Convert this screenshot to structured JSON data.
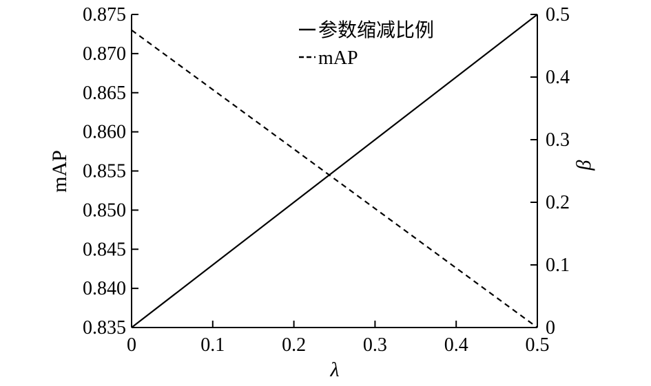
{
  "chart_data": {
    "type": "line",
    "x": [
      0,
      0.1,
      0.2,
      0.3,
      0.4,
      0.5
    ],
    "xlabel": "λ",
    "xlim": [
      0,
      0.5
    ],
    "xticks": [
      "0",
      "0.1",
      "0.2",
      "0.3",
      "0.4",
      "0.5"
    ],
    "ylabel_left": "mAP",
    "ylim_left": [
      0.835,
      0.875
    ],
    "yticks_left": [
      "0.835",
      "0.840",
      "0.845",
      "0.850",
      "0.855",
      "0.860",
      "0.865",
      "0.870",
      "0.875"
    ],
    "ylabel_right": "β",
    "ylim_right": [
      0,
      0.5
    ],
    "yticks_right": [
      "0",
      "0.1",
      "0.2",
      "0.3",
      "0.4",
      "0.5"
    ],
    "grid": false,
    "legend_position": "top-center",
    "series": [
      {
        "name": "参数缩减比例",
        "axis": "right",
        "style": "solid",
        "color": "#000000",
        "values": [
          0,
          0.1,
          0.2,
          0.3,
          0.4,
          0.5
        ]
      },
      {
        "name": "mAP",
        "axis": "left",
        "style": "dashed",
        "color": "#000000",
        "values": [
          0.873,
          0.8654,
          0.8578,
          0.8502,
          0.8426,
          0.835
        ]
      }
    ]
  }
}
